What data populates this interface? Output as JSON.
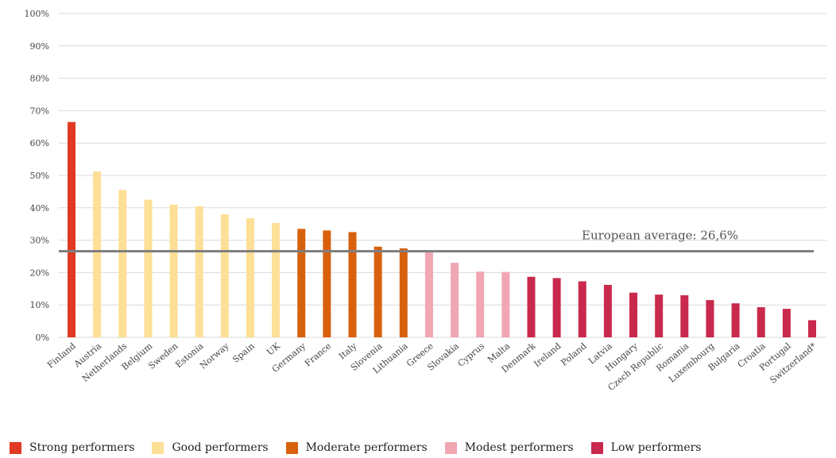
{
  "chart_data": {
    "type": "bar",
    "categories": [
      "Finland",
      "Austria",
      "Netherlands",
      "Belgium",
      "Sweden",
      "Estonia",
      "Norway",
      "Spain",
      "UK",
      "Germany",
      "France",
      "Italy",
      "Slovenia",
      "Lithuania",
      "Greece",
      "Slovakia",
      "Cyprus",
      "Malta",
      "Denmark",
      "Ireland",
      "Poland",
      "Latvia",
      "Hungary",
      "Czech Republic",
      "Romania",
      "Luxembourg",
      "Bulgaria",
      "Croatia",
      "Portugal",
      "Switzerland*"
    ],
    "values": [
      66.5,
      51.2,
      45.5,
      42.5,
      41,
      40.5,
      38,
      36.8,
      35.3,
      33.5,
      33,
      32.5,
      28,
      27.5,
      26.5,
      23,
      20.3,
      20.2,
      18.7,
      18.3,
      17.3,
      16.2,
      13.8,
      13.2,
      13,
      11.5,
      10.5,
      9.3,
      8.8,
      5.3
    ],
    "groups": [
      "Strong performers",
      "Good performers",
      "Good performers",
      "Good performers",
      "Good performers",
      "Good performers",
      "Good performers",
      "Good performers",
      "Good performers",
      "Moderate performers",
      "Moderate performers",
      "Moderate performers",
      "Moderate performers",
      "Moderate performers",
      "Modest performers",
      "Modest performers",
      "Modest performers",
      "Modest performers",
      "Low performers",
      "Low performers",
      "Low performers",
      "Low performers",
      "Low performers",
      "Low performers",
      "Low performers",
      "Low performers",
      "Low performers",
      "Low performers",
      "Low performers",
      "Low performers"
    ],
    "yticks": [
      "0%",
      "10%",
      "20%",
      "30%",
      "40%",
      "50%",
      "60%",
      "70%",
      "80%",
      "90%",
      "100%"
    ],
    "ylim": [
      0,
      100
    ],
    "reference_line": {
      "value": 26.6,
      "label": "European average: 26,6%",
      "color": "#7f7f7f"
    },
    "grid": true,
    "legend_placement": "bottom",
    "legend": [
      {
        "name": "Strong performers",
        "color": "#e03a22"
      },
      {
        "name": "Good performers",
        "color": "#fddf96"
      },
      {
        "name": "Moderate performers",
        "color": "#d8610e"
      },
      {
        "name": "Modest performers",
        "color": "#f0a7b2"
      },
      {
        "name": "Low performers",
        "color": "#c9294c"
      }
    ]
  }
}
